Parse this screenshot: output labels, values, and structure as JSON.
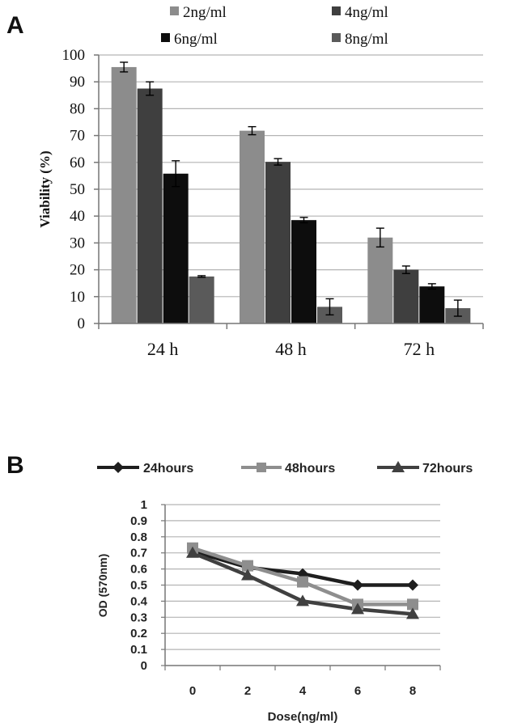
{
  "colors": {
    "s2": "#8c8c8c",
    "s4": "#3f3f3f",
    "s6": "#0d0d0d",
    "s8": "#5a5a5a",
    "h24": "#1e1e1e",
    "h48": "#8e8e8e",
    "h72": "#404040",
    "grid": "#b4b4b4",
    "axis": "#777777"
  },
  "chart_data": [
    {
      "panel_label": "A",
      "type": "bar",
      "ylabel": "Viability (%)",
      "ylim": [
        0,
        100
      ],
      "yticks": [
        "0",
        "10",
        "20",
        "30",
        "40",
        "50",
        "60",
        "70",
        "80",
        "90",
        "100"
      ],
      "categories": [
        "24 h",
        "48 h",
        "72 h"
      ],
      "grid": true,
      "legend_position": "top",
      "series": [
        {
          "name": "2ng/ml",
          "values": [
            95.5,
            71.8,
            32.0
          ],
          "errors": [
            1.8,
            1.5,
            3.5
          ],
          "color": "#8c8c8c"
        },
        {
          "name": "4ng/ml",
          "values": [
            87.5,
            60.2,
            20.0
          ],
          "errors": [
            2.5,
            1.2,
            1.4
          ],
          "color": "#3f3f3f"
        },
        {
          "name": "6ng/ml",
          "values": [
            55.8,
            38.5,
            13.8
          ],
          "errors": [
            4.8,
            1.0,
            1.0
          ],
          "color": "#0d0d0d"
        },
        {
          "name": "8ng/ml",
          "values": [
            17.5,
            6.2,
            5.7
          ],
          "errors": [
            0.3,
            3.0,
            3.0
          ],
          "color": "#5a5a5a"
        }
      ]
    },
    {
      "panel_label": "B",
      "type": "line",
      "xlabel": "Dose(ng/ml)",
      "ylabel": "OD (570nm)",
      "ylim": [
        0,
        1
      ],
      "yticks": [
        "0",
        "0.1",
        "0.2",
        "0.3",
        "0.4",
        "0.5",
        "0.6",
        "0.7",
        "0.8",
        "0.9",
        "1"
      ],
      "x": [
        0,
        2,
        4,
        6,
        8
      ],
      "xticks": [
        "0",
        "2",
        "4",
        "6",
        "8"
      ],
      "grid": true,
      "legend_position": "top",
      "series": [
        {
          "name": "24hours",
          "values": [
            0.71,
            0.61,
            0.57,
            0.5,
            0.5
          ],
          "marker": "diamond",
          "color": "#1e1e1e"
        },
        {
          "name": "48hours",
          "values": [
            0.73,
            0.62,
            0.52,
            0.38,
            0.38
          ],
          "marker": "square",
          "color": "#8e8e8e"
        },
        {
          "name": "72hours",
          "values": [
            0.7,
            0.56,
            0.4,
            0.35,
            0.32
          ],
          "marker": "triangle",
          "color": "#404040"
        }
      ]
    }
  ]
}
